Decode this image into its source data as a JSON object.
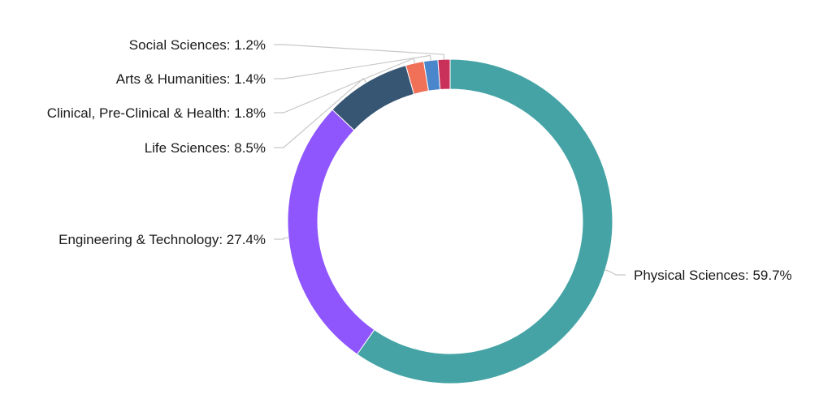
{
  "chart_data": {
    "type": "pie",
    "variant": "donut",
    "title": "",
    "start_angle_deg": 0,
    "direction": "clockwise",
    "unit": "%",
    "slices": [
      {
        "name": "Physical Sciences",
        "value": 59.7,
        "color": "#45a3a5"
      },
      {
        "name": "Engineering & Technology",
        "value": 27.4,
        "color": "#8f56fd"
      },
      {
        "name": "Life Sciences",
        "value": 8.5,
        "color": "#375674"
      },
      {
        "name": "Clinical, Pre-Clinical & Health",
        "value": 1.8,
        "color": "#f07158"
      },
      {
        "name": "Arts & Humanities",
        "value": 1.4,
        "color": "#4a86cb"
      },
      {
        "name": "Social Sciences",
        "value": 1.2,
        "color": "#c9315a"
      }
    ]
  }
}
